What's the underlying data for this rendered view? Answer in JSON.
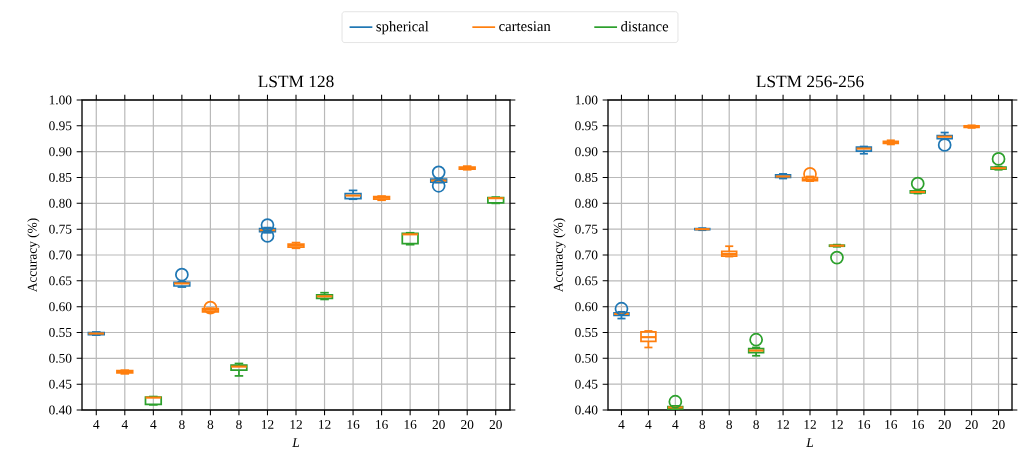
{
  "chart_data": [
    {
      "type": "box",
      "title": "LSTM 128",
      "xlabel": "*L*",
      "ylabel": "Accuracy (%)",
      "grid": true,
      "legend": "top",
      "categories": [
        "4",
        "4",
        "4",
        "8",
        "8",
        "8",
        "12",
        "12",
        "12",
        "16",
        "16",
        "16",
        "20",
        "20",
        "20"
      ],
      "ylim": [
        0.4,
        1.0
      ],
      "yticks": [
        {
          "value": 0.4,
          "label": "0.40"
        },
        {
          "value": 0.45,
          "label": "0.45"
        },
        {
          "value": 0.5,
          "label": "0.50"
        },
        {
          "value": 0.55,
          "label": "0.55"
        },
        {
          "value": 0.6,
          "label": "0.60"
        },
        {
          "value": 0.65,
          "label": "0.65"
        },
        {
          "value": 0.7,
          "label": "0.70"
        },
        {
          "value": 0.75,
          "label": "0.75"
        },
        {
          "value": 0.8,
          "label": "0.80"
        },
        {
          "value": 0.85,
          "label": "0.85"
        },
        {
          "value": 0.9,
          "label": "0.90"
        },
        {
          "value": 0.95,
          "label": "0.95"
        },
        {
          "value": 1.0,
          "label": "1.00"
        }
      ],
      "series": [
        {
          "name": "spherical",
          "color": "#1f77b4",
          "boxes": [
            {
              "low": 0.545,
              "q1": 0.546,
              "median": 0.548,
              "q3": 0.55,
              "high": 0.551
            },
            null,
            null,
            {
              "low": 0.638,
              "q1": 0.64,
              "median": 0.645,
              "q3": 0.647,
              "high": 0.648,
              "outliers": [
                0.662
              ]
            },
            null,
            null,
            {
              "low": 0.743,
              "q1": 0.745,
              "median": 0.748,
              "q3": 0.751,
              "high": 0.753,
              "outliers": [
                0.737,
                0.758
              ]
            },
            null,
            null,
            {
              "low": 0.808,
              "q1": 0.809,
              "median": 0.815,
              "q3": 0.819,
              "high": 0.825
            },
            null,
            null,
            {
              "low": 0.84,
              "q1": 0.841,
              "median": 0.844,
              "q3": 0.847,
              "high": 0.848,
              "outliers": [
                0.834,
                0.86
              ]
            },
            null,
            null
          ]
        },
        {
          "name": "cartesian",
          "color": "#ff7f0e",
          "boxes": [
            null,
            {
              "low": 0.47,
              "q1": 0.472,
              "median": 0.474,
              "q3": 0.476,
              "high": 0.477
            },
            null,
            null,
            {
              "low": 0.589,
              "q1": 0.59,
              "median": 0.594,
              "q3": 0.596,
              "high": 0.597,
              "outliers": [
                0.598
              ]
            },
            null,
            null,
            {
              "low": 0.713,
              "q1": 0.715,
              "median": 0.718,
              "q3": 0.721,
              "high": 0.724
            },
            null,
            null,
            {
              "low": 0.806,
              "q1": 0.808,
              "median": 0.811,
              "q3": 0.813,
              "high": 0.814
            },
            null,
            null,
            {
              "low": 0.865,
              "q1": 0.866,
              "median": 0.868,
              "q3": 0.87,
              "high": 0.872
            },
            null
          ]
        },
        {
          "name": "distance",
          "color": "#2ca02c",
          "boxes": [
            null,
            null,
            {
              "low": 0.41,
              "q1": 0.411,
              "median": 0.424,
              "q3": 0.425,
              "high": 0.426
            },
            null,
            null,
            {
              "low": 0.466,
              "q1": 0.477,
              "median": 0.484,
              "q3": 0.487,
              "high": 0.49
            },
            null,
            null,
            {
              "low": 0.614,
              "q1": 0.616,
              "median": 0.62,
              "q3": 0.623,
              "high": 0.627
            },
            null,
            null,
            {
              "low": 0.72,
              "q1": 0.722,
              "median": 0.74,
              "q3": 0.742,
              "high": 0.743
            },
            null,
            null,
            {
              "low": 0.8,
              "q1": 0.801,
              "median": 0.81,
              "q3": 0.811,
              "high": 0.812
            }
          ]
        }
      ]
    },
    {
      "type": "box",
      "title": "LSTM 256-256",
      "xlabel": "*L*",
      "ylabel": "Accuracy (%)",
      "grid": true,
      "categories": [
        "4",
        "4",
        "4",
        "8",
        "8",
        "8",
        "12",
        "12",
        "12",
        "16",
        "16",
        "16",
        "20",
        "20",
        "20"
      ],
      "ylim": [
        0.4,
        1.0
      ],
      "yticks": [
        {
          "value": 0.4,
          "label": "0.40"
        },
        {
          "value": 0.45,
          "label": "0.45"
        },
        {
          "value": 0.5,
          "label": "0.50"
        },
        {
          "value": 0.55,
          "label": "0.55"
        },
        {
          "value": 0.6,
          "label": "0.60"
        },
        {
          "value": 0.65,
          "label": "0.65"
        },
        {
          "value": 0.7,
          "label": "0.70"
        },
        {
          "value": 0.75,
          "label": "0.75"
        },
        {
          "value": 0.8,
          "label": "0.80"
        },
        {
          "value": 0.85,
          "label": "0.85"
        },
        {
          "value": 0.9,
          "label": "0.90"
        },
        {
          "value": 0.95,
          "label": "0.95"
        },
        {
          "value": 1.0,
          "label": "1.00"
        }
      ],
      "series": [
        {
          "color": "#1f77b4",
          "boxes": [
            {
              "low": 0.577,
              "q1": 0.583,
              "median": 0.586,
              "q3": 0.588,
              "high": 0.59,
              "outliers": [
                0.596
              ]
            },
            null,
            null,
            {
              "low": 0.748,
              "q1": 0.749,
              "median": 0.75,
              "q3": 0.751,
              "high": 0.752
            },
            null,
            null,
            {
              "low": 0.848,
              "q1": 0.85,
              "median": 0.852,
              "q3": 0.855,
              "high": 0.857
            },
            null,
            null,
            {
              "low": 0.896,
              "q1": 0.901,
              "median": 0.906,
              "q3": 0.909,
              "high": 0.91
            },
            null,
            null,
            {
              "low": 0.924,
              "q1": 0.925,
              "median": 0.929,
              "q3": 0.931,
              "high": 0.937,
              "outliers": [
                0.913
              ]
            },
            null,
            null
          ]
        },
        {
          "color": "#ff7f0e",
          "boxes": [
            null,
            {
              "low": 0.521,
              "q1": 0.533,
              "median": 0.541,
              "q3": 0.551,
              "high": 0.553
            },
            null,
            null,
            {
              "low": 0.697,
              "q1": 0.698,
              "median": 0.702,
              "q3": 0.707,
              "high": 0.717
            },
            null,
            null,
            {
              "low": 0.843,
              "q1": 0.844,
              "median": 0.846,
              "q3": 0.85,
              "high": 0.852,
              "outliers": [
                0.857
              ]
            },
            null,
            null,
            {
              "low": 0.914,
              "q1": 0.916,
              "median": 0.918,
              "q3": 0.92,
              "high": 0.922
            },
            null,
            null,
            {
              "low": 0.946,
              "q1": 0.947,
              "median": 0.948,
              "q3": 0.95,
              "high": 0.951
            },
            null
          ]
        },
        {
          "color": "#2ca02c",
          "boxes": [
            null,
            null,
            {
              "low": 0.401,
              "q1": 0.402,
              "median": 0.405,
              "q3": 0.407,
              "high": 0.408,
              "outliers": [
                0.416
              ]
            },
            null,
            null,
            {
              "low": 0.505,
              "q1": 0.511,
              "median": 0.515,
              "q3": 0.519,
              "high": 0.521,
              "outliers": [
                0.536
              ]
            },
            null,
            null,
            {
              "low": 0.716,
              "q1": 0.717,
              "median": 0.718,
              "q3": 0.719,
              "high": 0.72,
              "outliers": [
                0.695
              ]
            },
            null,
            null,
            {
              "low": 0.819,
              "q1": 0.82,
              "median": 0.822,
              "q3": 0.824,
              "high": 0.825,
              "outliers": [
                0.838
              ]
            },
            null,
            null,
            {
              "low": 0.865,
              "q1": 0.866,
              "median": 0.868,
              "q3": 0.87,
              "high": 0.871,
              "outliers": [
                0.886
              ]
            }
          ]
        }
      ]
    }
  ]
}
